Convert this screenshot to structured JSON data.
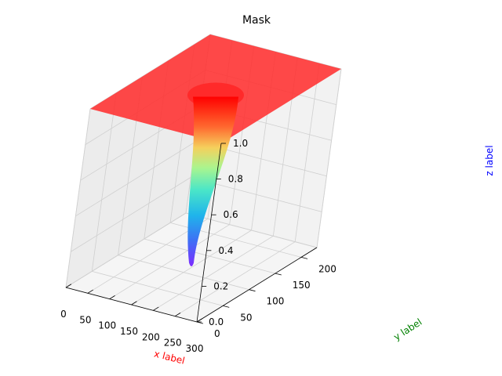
{
  "chart_data": {
    "type": "surface3d",
    "title": "Mask",
    "xlabel": "x label",
    "ylabel": "y label",
    "zlabel": "z label",
    "xlabel_color": "#ff0000",
    "ylabel_color": "#008000",
    "zlabel_color": "#0000ff",
    "xlim": [
      0,
      300
    ],
    "ylim": [
      0,
      230
    ],
    "zlim": [
      0,
      1
    ],
    "x_ticks": [
      "0",
      "50",
      "100",
      "150",
      "200",
      "250",
      "300"
    ],
    "y_ticks": [
      "0",
      "50",
      "100",
      "150",
      "200"
    ],
    "z_ticks": [
      "0.0",
      "0.2",
      "0.4",
      "0.6",
      "0.8",
      "1.0"
    ],
    "colormap": "rainbow",
    "grid": true,
    "surface": {
      "plateau_z": 1.0,
      "funnel_center": [
        150,
        115
      ],
      "funnel_min_z": 0.0,
      "plane_color": "#ff3030"
    }
  }
}
